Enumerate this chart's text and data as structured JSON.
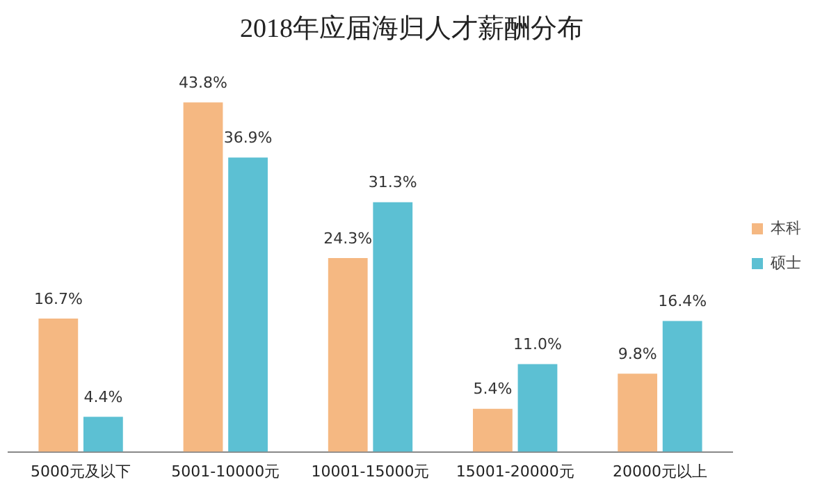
{
  "chart_data": {
    "type": "bar",
    "title": "2018年应届海归人才薪酬分布",
    "categories": [
      "5000元及以下",
      "5001-10000元",
      "10001-15000元",
      "15001-20000元",
      "20000元以上"
    ],
    "series": [
      {
        "name": "本科",
        "color": "#f5b882",
        "values": [
          16.7,
          43.8,
          24.3,
          5.4,
          9.8
        ],
        "value_labels": [
          "16.7%",
          "43.8%",
          "24.3%",
          "5.4%",
          "9.8%"
        ]
      },
      {
        "name": "硕士",
        "color": "#5cc0d3",
        "values": [
          4.4,
          36.9,
          31.3,
          11.0,
          16.4
        ],
        "value_labels": [
          "4.4%",
          "36.9%",
          "31.3%",
          "11.0%",
          "16.4%"
        ]
      }
    ],
    "legend": "right",
    "grid": false
  }
}
